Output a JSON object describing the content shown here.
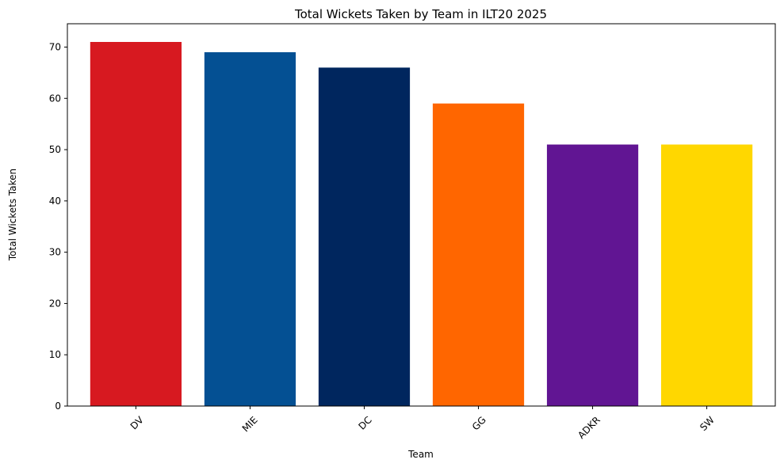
{
  "chart_data": {
    "type": "bar",
    "title": "Total Wickets Taken by Team in ILT20 2025",
    "xlabel": "Team",
    "ylabel": "Total Wickets Taken",
    "categories": [
      "DV",
      "MIE",
      "DC",
      "GG",
      "ADKR",
      "SW"
    ],
    "values": [
      71,
      69,
      66,
      59,
      51,
      51
    ],
    "colors": [
      "#d71920",
      "#045093",
      "#00265e",
      "#ff6600",
      "#611593",
      "#ffd700"
    ],
    "ylim": [
      0,
      74.55
    ],
    "yticks": [
      0,
      10,
      20,
      30,
      40,
      50,
      60,
      70
    ],
    "xtick_rotation": 45,
    "grid": false,
    "legend": "none"
  }
}
